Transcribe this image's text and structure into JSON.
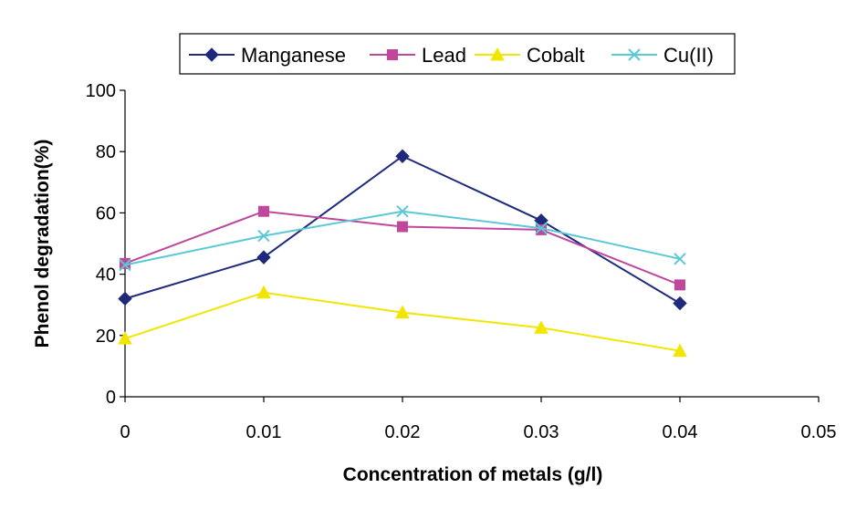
{
  "chart_data": {
    "type": "line",
    "xlabel": "Concentration of metals (g/l)",
    "ylabel": "Phenol degradation(%)",
    "xlim": [
      0,
      0.05
    ],
    "ylim": [
      0,
      100
    ],
    "x_ticks": [
      "0",
      "0.01",
      "0.02",
      "0.03",
      "0.04",
      "0.05"
    ],
    "y_ticks": [
      "0",
      "20",
      "40",
      "60",
      "80",
      "100"
    ],
    "x": [
      0,
      0.01,
      0.02,
      0.03,
      0.04
    ],
    "grid": false,
    "legend_position": "top",
    "series": [
      {
        "name": "Manganese",
        "color": "#1f2a7a",
        "marker": "diamond",
        "values": [
          32,
          45.5,
          78.5,
          57.5,
          30.5
        ]
      },
      {
        "name": "Lead",
        "color": "#c0479b",
        "marker": "square",
        "values": [
          43.5,
          60.5,
          55.5,
          54.5,
          36.5
        ]
      },
      {
        "name": "Cobalt",
        "color": "#f2e600",
        "marker": "triangle",
        "values": [
          19,
          34,
          27.5,
          22.5,
          15
        ]
      },
      {
        "name": "Cu(II)",
        "color": "#5bc8d6",
        "marker": "x",
        "values": [
          43,
          52.5,
          60.5,
          55,
          45
        ]
      }
    ]
  }
}
